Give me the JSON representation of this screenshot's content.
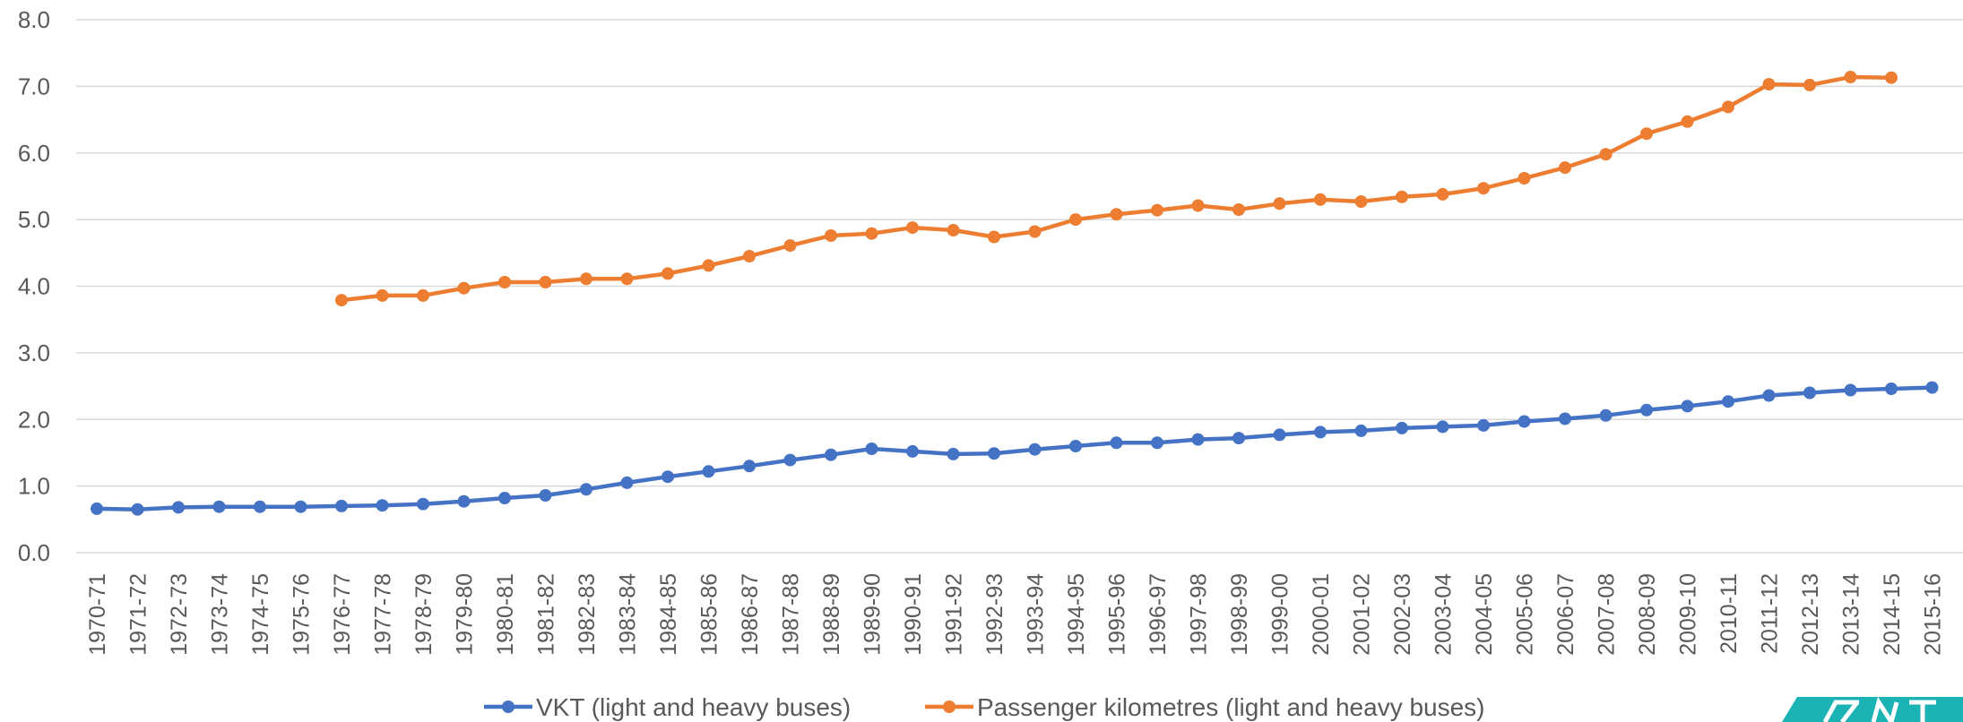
{
  "chart_data": {
    "type": "line",
    "title": "",
    "xlabel": "",
    "ylabel": "",
    "ylim": [
      0,
      8
    ],
    "y_ticks": [
      "0.0",
      "1.0",
      "2.0",
      "3.0",
      "4.0",
      "5.0",
      "6.0",
      "7.0",
      "8.0"
    ],
    "grid": true,
    "legend_position": "bottom",
    "categories": [
      "1970-71",
      "1971-72",
      "1972-73",
      "1973-74",
      "1974-75",
      "1975-76",
      "1976-77",
      "1977-78",
      "1978-79",
      "1979-80",
      "1980-81",
      "1981-82",
      "1982-83",
      "1983-84",
      "1984-85",
      "1985-86",
      "1986-87",
      "1987-88",
      "1988-89",
      "1989-90",
      "1990-91",
      "1991-92",
      "1992-93",
      "1993-94",
      "1994-95",
      "1995-96",
      "1996-97",
      "1997-98",
      "1998-99",
      "1999-00",
      "2000-01",
      "2001-02",
      "2002-03",
      "2003-04",
      "2004-05",
      "2005-06",
      "2006-07",
      "2007-08",
      "2008-09",
      "2009-10",
      "2010-11",
      "2011-12",
      "2012-13",
      "2013-14",
      "2014-15",
      "2015-16"
    ],
    "series": [
      {
        "name": "VKT (light and heavy buses)",
        "color": "#4472C4",
        "values": [
          0.66,
          0.65,
          0.68,
          0.69,
          0.69,
          0.69,
          0.7,
          0.71,
          0.73,
          0.77,
          0.82,
          0.86,
          0.95,
          1.05,
          1.14,
          1.22,
          1.3,
          1.39,
          1.47,
          1.56,
          1.52,
          1.48,
          1.49,
          1.55,
          1.6,
          1.65,
          1.65,
          1.7,
          1.72,
          1.77,
          1.81,
          1.83,
          1.87,
          1.89,
          1.91,
          1.97,
          2.01,
          2.06,
          2.14,
          2.2,
          2.27,
          2.36,
          2.4,
          2.44,
          2.46,
          2.48
        ]
      },
      {
        "name": "Passenger kilometres (light and heavy buses)",
        "color": "#ED7D31",
        "values": [
          null,
          null,
          null,
          null,
          null,
          null,
          3.79,
          3.86,
          3.86,
          3.97,
          4.06,
          4.06,
          4.11,
          4.11,
          4.19,
          4.31,
          4.45,
          4.61,
          4.76,
          4.79,
          4.88,
          4.84,
          4.74,
          4.82,
          5.0,
          5.08,
          5.14,
          5.21,
          5.15,
          5.24,
          5.3,
          5.27,
          5.34,
          5.38,
          5.47,
          5.62,
          5.78,
          5.98,
          6.29,
          6.47,
          6.69,
          7.03,
          7.02,
          7.14,
          7.13,
          null
        ]
      }
    ]
  },
  "brand_colors": {
    "logo": "#1BB3B3"
  }
}
